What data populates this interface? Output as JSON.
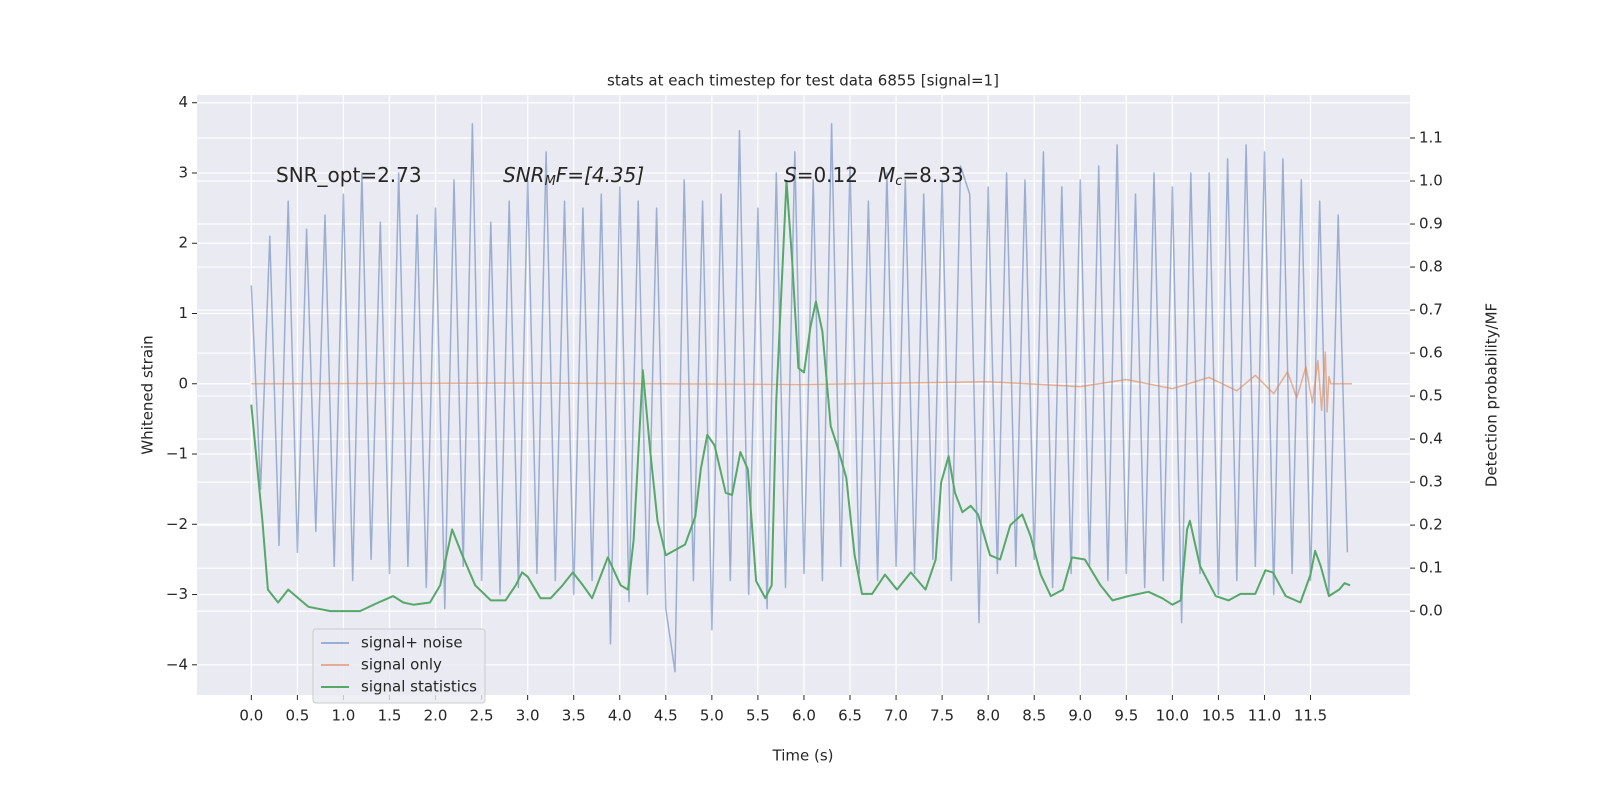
{
  "chart_data": {
    "type": "line",
    "title": "stats at each timestep for test data 6855 [signal=1]",
    "xlabel": "Time (s)",
    "ylabel": "Whitened strain",
    "y2label": "Detection probability/MF",
    "xlim": [
      -0.59,
      12.58
    ],
    "ylim": [
      -4.43,
      4.11
    ],
    "y2lim": [
      -0.195,
      1.2
    ],
    "xticks": [
      {
        "value": 0,
        "label": "0.0"
      },
      0.5,
      {
        "value": 1,
        "label": "1.0"
      },
      1.5,
      {
        "value": 2,
        "label": "2.0"
      },
      2.5,
      {
        "value": 3,
        "label": "3.0"
      },
      3.5,
      {
        "value": 4,
        "label": "4.0"
      },
      4.5,
      {
        "value": 5,
        "label": "5.0"
      },
      5.5,
      {
        "value": 6,
        "label": "6.0"
      },
      6.5,
      {
        "value": 7,
        "label": "7.0"
      },
      7.5,
      {
        "value": 8,
        "label": "8.0"
      },
      8.5,
      {
        "value": 9,
        "label": "9.0"
      },
      9.5,
      {
        "value": 10,
        "label": "10.0"
      },
      10.5,
      {
        "value": 11,
        "label": "11.0"
      },
      11.5
    ],
    "yticks": [
      {
        "value": -4,
        "label": "−4"
      },
      {
        "value": -3,
        "label": "−3"
      },
      {
        "value": -2,
        "label": "−2"
      },
      {
        "value": -1,
        "label": "−1"
      },
      0,
      1,
      2,
      3,
      4
    ],
    "y2ticks": [
      {
        "value": 0,
        "label": "0.0"
      },
      0.1,
      0.2,
      0.3,
      0.4,
      0.5,
      0.6,
      0.7,
      0.8,
      0.9,
      {
        "value": 1,
        "label": "1.0"
      },
      1.1
    ],
    "grid": true,
    "legend": "lower left",
    "annotations": [
      [
        "SNR_opt=2.73"
      ],
      [
        "SNR",
        "M",
        "F=[4.35]"
      ],
      [
        "S",
        "=0.12"
      ],
      [
        "M",
        "c",
        "=8.33"
      ]
    ],
    "series": [
      {
        "name": "signal+ noise",
        "color": "#4c72b0",
        "alpha": 0.5,
        "x": [
          0,
          0.1,
          0.2,
          0.3,
          0.4,
          0.5,
          0.6,
          0.7,
          0.8,
          0.9,
          1,
          1.1,
          1.2,
          1.3,
          1.4,
          1.5,
          1.6,
          1.7,
          1.8,
          1.9,
          2,
          2.1,
          2.2,
          2.3,
          2.4,
          2.5,
          2.6,
          2.7,
          2.8,
          2.9,
          3,
          3.1,
          3.2,
          3.3,
          3.4,
          3.5,
          3.6,
          3.7,
          3.8,
          3.9,
          4,
          4.1,
          4.2,
          4.3,
          4.4,
          4.5,
          4.6,
          4.7,
          4.8,
          4.9,
          5,
          5.1,
          5.2,
          5.3,
          5.4,
          5.5,
          5.6,
          5.7,
          5.8,
          5.9,
          6,
          6.1,
          6.2,
          6.3,
          6.4,
          6.5,
          6.6,
          6.7,
          6.8,
          6.9,
          7,
          7.1,
          7.2,
          7.3,
          7.4,
          7.5,
          7.6,
          7.7,
          7.8,
          7.9,
          8,
          8.1,
          8.2,
          8.3,
          8.4,
          8.5,
          8.6,
          8.7,
          8.8,
          8.9,
          9,
          9.1,
          9.2,
          9.3,
          9.4,
          9.5,
          9.6,
          9.7,
          9.8,
          9.9,
          10,
          10.1,
          10.2,
          10.3,
          10.4,
          10.5,
          10.6,
          10.7,
          10.8,
          10.9,
          11,
          11.1,
          11.2,
          11.3,
          11.4,
          11.5,
          11.6,
          11.7,
          11.8,
          11.9
        ],
        "values": [
          1.4,
          -1.5,
          2.1,
          -2.3,
          2.6,
          -2.4,
          2.2,
          -2.1,
          2.4,
          -2.6,
          2.7,
          -2.8,
          3.0,
          -2.5,
          2.3,
          -2.7,
          3.0,
          -2.6,
          2.4,
          -2.9,
          2.5,
          -3.2,
          2.9,
          -2.6,
          3.7,
          -2.8,
          2.3,
          -3.0,
          2.6,
          -2.9,
          2.9,
          -2.7,
          3.3,
          -2.8,
          2.6,
          -3.0,
          2.5,
          -2.8,
          2.7,
          -3.7,
          2.8,
          -3.1,
          2.6,
          -3.0,
          2.5,
          -3.2,
          -4.1,
          2.9,
          -2.8,
          2.6,
          -3.5,
          2.7,
          -2.8,
          3.6,
          -3.0,
          2.5,
          -3.2,
          3.0,
          -2.9,
          3.3,
          -2.7,
          2.9,
          -2.8,
          3.7,
          -2.6,
          3.1,
          -2.7,
          2.6,
          -2.8,
          3.0,
          -2.6,
          2.9,
          -2.7,
          2.7,
          -2.5,
          2.9,
          -2.8,
          3.1,
          2.7,
          -3.4,
          2.8,
          -2.7,
          3.0,
          -2.6,
          2.9,
          -2.5,
          3.3,
          -2.9,
          2.8,
          -2.7,
          2.9,
          -2.6,
          3.1,
          -2.8,
          3.4,
          -2.7,
          2.7,
          -2.9,
          3.0,
          -2.8,
          2.8,
          -3.4,
          3.0,
          -2.7,
          3.0,
          -3.0,
          3.2,
          -2.8,
          3.4,
          -2.6,
          3.3,
          -3.0,
          3.2,
          -2.7,
          2.9,
          -2.8,
          2.6,
          -3.0,
          2.4,
          -2.4
        ]
      },
      {
        "name": "signal only",
        "color": "#dd8452",
        "alpha": 0.6,
        "x": [
          0,
          3,
          6,
          8,
          9,
          9.5,
          10,
          10.4,
          10.7,
          10.9,
          11.1,
          11.25,
          11.35,
          11.45,
          11.52,
          11.58,
          11.62,
          11.66,
          11.68,
          11.7,
          11.72,
          11.95
        ],
        "values": [
          0,
          0.01,
          -0.01,
          0.03,
          -0.04,
          0.06,
          -0.07,
          0.09,
          -0.1,
          0.12,
          -0.14,
          0.17,
          -0.2,
          0.24,
          -0.27,
          0.33,
          -0.38,
          0.45,
          -0.4,
          0.1,
          0,
          0
        ]
      },
      {
        "name": "signal statistics",
        "color": "#55a868",
        "alpha": 1,
        "axis": "y2",
        "x": [
          0,
          0.12,
          0.18,
          0.29,
          0.4,
          0.51,
          0.62,
          0.86,
          1.18,
          1.38,
          1.54,
          1.65,
          1.76,
          1.94,
          2.05,
          2.18,
          2.29,
          2.43,
          2.6,
          2.76,
          2.87,
          2.94,
          3.0,
          3.14,
          3.25,
          3.38,
          3.49,
          3.6,
          3.7,
          3.87,
          4.01,
          4.09,
          4.15,
          4.25,
          4.33,
          4.41,
          4.5,
          4.71,
          4.82,
          4.88,
          4.95,
          5.03,
          5.15,
          5.22,
          5.31,
          5.39,
          5.48,
          5.58,
          5.65,
          5.7,
          5.81,
          5.87,
          5.94,
          6.0,
          6.07,
          6.13,
          6.2,
          6.29,
          6.36,
          6.46,
          6.55,
          6.63,
          6.74,
          6.88,
          7.01,
          7.16,
          7.32,
          7.43,
          7.49,
          7.57,
          7.64,
          7.72,
          7.81,
          7.89,
          8.02,
          8.13,
          8.24,
          8.37,
          8.46,
          8.57,
          8.68,
          8.81,
          8.91,
          9.05,
          9.22,
          9.35,
          9.52,
          9.74,
          9.89,
          10.0,
          10.09,
          10.16,
          10.19,
          10.3,
          10.47,
          10.61,
          10.74,
          10.9,
          11.01,
          11.09,
          11.23,
          11.39,
          11.5,
          11.55,
          11.61,
          11.7,
          11.81,
          11.87,
          11.93
        ],
        "values": [
          0.48,
          0.21,
          0.05,
          0.02,
          0.05,
          0.03,
          0.01,
          0.0,
          0.0,
          0.02,
          0.035,
          0.02,
          0.015,
          0.02,
          0.06,
          0.19,
          0.13,
          0.06,
          0.025,
          0.025,
          0.06,
          0.09,
          0.08,
          0.03,
          0.03,
          0.06,
          0.09,
          0.06,
          0.03,
          0.125,
          0.06,
          0.05,
          0.165,
          0.56,
          0.375,
          0.21,
          0.13,
          0.155,
          0.22,
          0.33,
          0.41,
          0.385,
          0.275,
          0.27,
          0.37,
          0.33,
          0.07,
          0.03,
          0.06,
          0.49,
          1.0,
          0.82,
          0.565,
          0.555,
          0.66,
          0.72,
          0.65,
          0.43,
          0.385,
          0.31,
          0.13,
          0.04,
          0.04,
          0.085,
          0.05,
          0.09,
          0.05,
          0.12,
          0.3,
          0.36,
          0.275,
          0.23,
          0.245,
          0.225,
          0.13,
          0.12,
          0.2,
          0.225,
          0.175,
          0.085,
          0.035,
          0.05,
          0.125,
          0.12,
          0.06,
          0.025,
          0.035,
          0.045,
          0.03,
          0.015,
          0.025,
          0.19,
          0.21,
          0.105,
          0.035,
          0.025,
          0.04,
          0.04,
          0.095,
          0.09,
          0.035,
          0.02,
          0.085,
          0.14,
          0.105,
          0.035,
          0.05,
          0.065,
          0.06
        ]
      }
    ]
  }
}
